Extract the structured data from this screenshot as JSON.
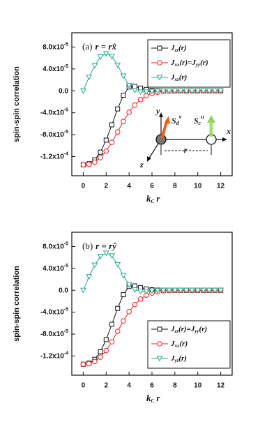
{
  "chart_data": [
    {
      "type": "line",
      "title": [
        "(a)",
        "r = rx̂"
      ],
      "ylabel": "spin-spin correlation",
      "xlabel": [
        "k",
        "C",
        " r"
      ],
      "x": [
        0,
        0.5,
        1,
        1.5,
        2,
        2.5,
        3,
        3.5,
        4,
        4.5,
        5,
        5.5,
        6,
        6.5,
        7,
        7.5,
        8,
        8.5,
        9,
        9.5,
        10,
        10.5,
        11,
        11.5,
        12
      ],
      "xlim": [
        -1,
        13
      ],
      "xticks": [
        0,
        2,
        4,
        6,
        8,
        10,
        12
      ],
      "ylim": [
        -0.000155,
        0.000106
      ],
      "yticks": [
        {
          "value": 8e-05,
          "label": "8.0x10",
          "exp": "-5"
        },
        {
          "value": 4e-05,
          "label": "4.0x10",
          "exp": "-5"
        },
        {
          "value": 0,
          "label": "0.0"
        },
        {
          "value": -4e-05,
          "label": "-4.0x10",
          "exp": "-5"
        },
        {
          "value": -8e-05,
          "label": "-8.0x10",
          "exp": "-5"
        },
        {
          "value": -0.00012,
          "label": "-1.2x10",
          "exp": "-4"
        }
      ],
      "legend": "upper right",
      "series": [
        {
          "name": [
            "J",
            "zz",
            "(r)"
          ],
          "color": "#111111",
          "marker": "square",
          "values": [
            -0.000135,
            -0.000133,
            -0.000126,
            -0.000112,
            -9e-05,
            -6.2e-05,
            -3.3e-05,
            -8e-06,
            7e-06,
            8e-06,
            5e-06,
            2.5e-06,
            1e-06,
            3e-07,
            0,
            0,
            0,
            0,
            0,
            0,
            0,
            0,
            0,
            0,
            0
          ]
        },
        {
          "name": [
            "J",
            "xx",
            "(r)=J",
            "yy",
            "(r)"
          ],
          "color": "#f02020",
          "marker": "circle",
          "values": [
            -0.000135,
            -0.000134,
            -0.00013,
            -0.000122,
            -0.00011,
            -9.4e-05,
            -7.5e-05,
            -5.6e-05,
            -3.9e-05,
            -2.6e-05,
            -1.6e-05,
            -9e-06,
            -5e-06,
            -2.5e-06,
            -1e-06,
            -5e-07,
            0,
            0,
            0,
            0,
            0,
            0,
            0,
            0,
            0
          ]
        },
        {
          "name": [
            "J",
            "xz",
            "(r)"
          ],
          "color": "#2aa88f",
          "marker": "triangle-down",
          "values": [
            0,
            2.5e-05,
            4.6e-05,
            6.2e-05,
            6.8e-05,
            6.3e-05,
            4.7e-05,
            2.7e-05,
            1e-05,
            1e-06,
            -2e-06,
            -2e-06,
            -1e-06,
            -5e-07,
            0,
            0,
            0,
            0,
            0,
            0,
            0,
            0,
            0,
            0,
            0
          ]
        }
      ],
      "annotations": [
        "y",
        "x",
        "z",
        "r"
      ],
      "spin_labels": [
        [
          "S",
          "d",
          "v"
        ],
        [
          "S",
          "c",
          "u"
        ]
      ]
    },
    {
      "type": "line",
      "title": [
        "(b)",
        "r = rŷ"
      ],
      "ylabel": "spin-spin correlation",
      "xlabel": [
        "k",
        "C",
        " r"
      ],
      "x": [
        0,
        0.5,
        1,
        1.5,
        2,
        2.5,
        3,
        3.5,
        4,
        4.5,
        5,
        5.5,
        6,
        6.5,
        7,
        7.5,
        8,
        8.5,
        9,
        9.5,
        10,
        10.5,
        11,
        11.5,
        12
      ],
      "xlim": [
        -1,
        13
      ],
      "xticks": [
        0,
        2,
        4,
        6,
        8,
        10,
        12
      ],
      "ylim": [
        -0.000155,
        0.000106
      ],
      "yticks": [
        {
          "value": 8e-05,
          "label": "8.0x10",
          "exp": "-5"
        },
        {
          "value": 4e-05,
          "label": "4.0x10",
          "exp": "-5"
        },
        {
          "value": 0,
          "label": "0.0"
        },
        {
          "value": -4e-05,
          "label": "-4.0x10",
          "exp": "-5"
        },
        {
          "value": -8e-05,
          "label": "-8.0x10",
          "exp": "-5"
        },
        {
          "value": -0.00012,
          "label": "-1.2x10",
          "exp": "-4"
        }
      ],
      "legend": "lower right",
      "series": [
        {
          "name": [
            "J",
            "zz",
            "(r)=J",
            "yy",
            "(r)"
          ],
          "color": "#111111",
          "marker": "square",
          "values": [
            -0.000135,
            -0.000133,
            -0.000126,
            -0.000112,
            -9e-05,
            -6.2e-05,
            -3.3e-05,
            -8e-06,
            7e-06,
            8e-06,
            5e-06,
            2.5e-06,
            1e-06,
            3e-07,
            0,
            0,
            0,
            0,
            0,
            0,
            0,
            0,
            0,
            0,
            0
          ]
        },
        {
          "name": [
            "J",
            "xx",
            "(r)"
          ],
          "color": "#f02020",
          "marker": "circle",
          "values": [
            -0.000135,
            -0.000134,
            -0.00013,
            -0.000122,
            -0.00011,
            -9.4e-05,
            -7.5e-05,
            -5.6e-05,
            -3.9e-05,
            -2.6e-05,
            -1.6e-05,
            -9e-06,
            -5e-06,
            -2.5e-06,
            -1e-06,
            -5e-07,
            0,
            0,
            0,
            0,
            0,
            0,
            0,
            0,
            0
          ]
        },
        {
          "name": [
            "J",
            "yz",
            "(r)"
          ],
          "color": "#2aa88f",
          "marker": "triangle-down",
          "values": [
            0,
            2.5e-05,
            4.6e-05,
            6.2e-05,
            6.8e-05,
            6.3e-05,
            4.7e-05,
            2.7e-05,
            1e-05,
            1e-06,
            -2e-06,
            -2e-06,
            -1e-06,
            -5e-07,
            0,
            0,
            0,
            0,
            0,
            0,
            0,
            0,
            0,
            0,
            0
          ]
        }
      ]
    }
  ]
}
